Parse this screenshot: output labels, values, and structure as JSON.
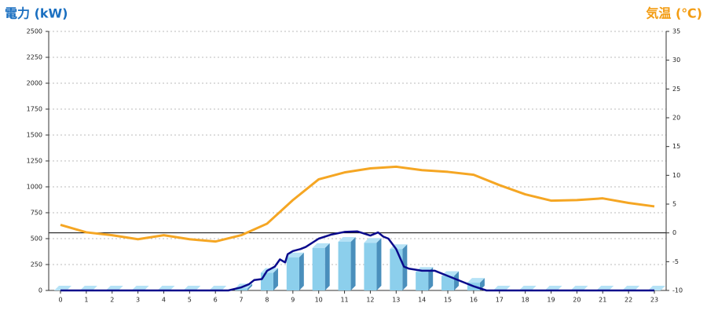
{
  "chart_data": {
    "type": "bar",
    "y_label": "電力 (kW)",
    "y2_label": "気温 (℃)",
    "categories": [
      "0",
      "1",
      "2",
      "3",
      "4",
      "5",
      "6",
      "7",
      "8",
      "9",
      "10",
      "11",
      "12",
      "13",
      "14",
      "15",
      "16",
      "17",
      "18",
      "19",
      "20",
      "21",
      "22",
      "23"
    ],
    "ylim": [
      0,
      2500
    ],
    "yticks": [
      0,
      250,
      500,
      750,
      1000,
      1250,
      1500,
      1750,
      2000,
      2250,
      2500
    ],
    "y2lim": [
      -10,
      35
    ],
    "y2ticks": [
      -10,
      -5,
      0,
      5,
      10,
      15,
      20,
      25,
      30,
      35
    ],
    "grid": true,
    "series": [
      {
        "type": "bar",
        "color": "#8ccfec",
        "values": [
          0,
          0,
          0,
          0,
          0,
          0,
          0,
          20,
          170,
          320,
          410,
          470,
          460,
          400,
          180,
          140,
          75,
          0,
          0,
          0,
          0,
          0,
          0,
          0
        ]
      },
      {
        "type": "line",
        "color": "#0a0a8c",
        "x": [
          0,
          6.5,
          7,
          7.3,
          7.5,
          7.8,
          8,
          8.3,
          8.5,
          8.7,
          8.8,
          9,
          9.3,
          9.5,
          10,
          10.5,
          11,
          11.5,
          12,
          12.3,
          12.5,
          12.7,
          13,
          13.3,
          13.5,
          14,
          14.5,
          15,
          15.5,
          16,
          16.5,
          23
        ],
        "values": [
          0,
          0,
          30,
          60,
          100,
          110,
          190,
          230,
          300,
          270,
          350,
          380,
          400,
          420,
          500,
          540,
          565,
          570,
          530,
          560,
          520,
          500,
          400,
          230,
          210,
          190,
          190,
          140,
          90,
          40,
          0,
          0
        ]
      },
      {
        "type": "line",
        "axis": "y2",
        "color": "#f5a623",
        "values": [
          1.4,
          0.1,
          -0.4,
          -1.1,
          -0.4,
          -1.1,
          -1.5,
          -0.4,
          1.6,
          5.7,
          9.3,
          10.5,
          11.2,
          11.5,
          10.9,
          10.6,
          10.1,
          8.3,
          6.7,
          5.6,
          5.7,
          6.0,
          5.2,
          4.6
        ]
      }
    ]
  }
}
